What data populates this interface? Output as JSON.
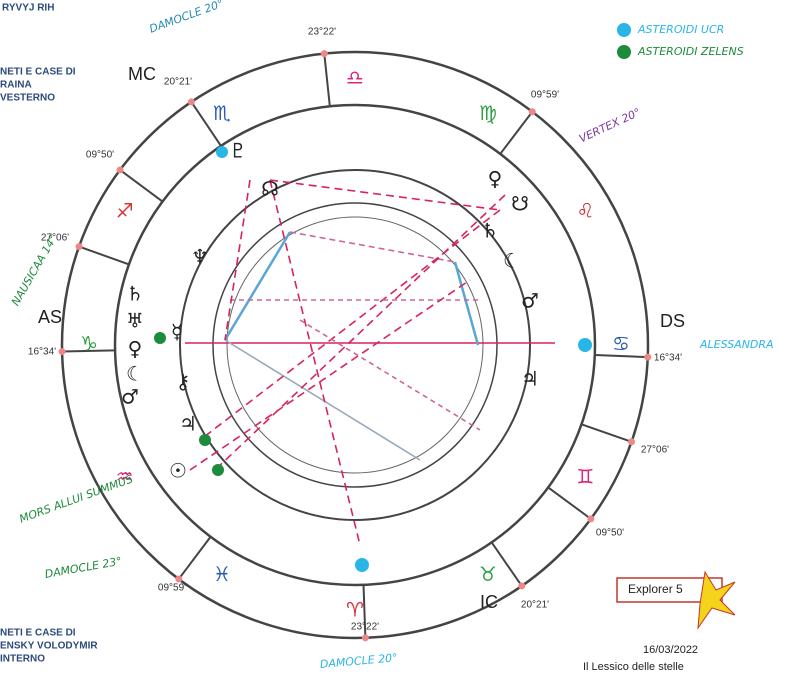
{
  "header": {
    "name": "RYVYJ RIH",
    "planets_top": [
      "NETI E CASE DI",
      "RAINA",
      "VESTERNO"
    ],
    "planets_bottom": [
      "NETI E CASE DI",
      "ENSKY VOLODYMIR",
      "INTERNO"
    ]
  },
  "legend": [
    {
      "label": "ASTEROIDI UCR",
      "color": "#29b6e6"
    },
    {
      "label": "ASTEROIDI ZELENS",
      "color": "#1e8a3c"
    }
  ],
  "angles": {
    "mc": "MC",
    "as": "AS",
    "ds": "DS",
    "ic": "IC"
  },
  "cusp_degrees": [
    "23°22'",
    "20°21'",
    "09°59'",
    "09°50'",
    "27°06'",
    "16°34'",
    "16°34'",
    "27°06'",
    "09°50'",
    "09°59'",
    "20°21'",
    "23°22'"
  ],
  "signs": [
    "♎",
    "♏",
    "♐",
    "♑",
    "♒",
    "♓",
    "♈",
    "♉",
    "♊",
    "♋",
    "♌",
    "♍"
  ],
  "planets": [
    "♇",
    "☊",
    "♆",
    "♄",
    "♅",
    "☿",
    "♀",
    "☾",
    "♂",
    "⚷",
    "♃",
    "☉",
    "♀",
    "☋",
    "♄",
    "☾",
    "♂",
    "♃"
  ],
  "notes": [
    "DAMOCLE 20°",
    "VERTEX 20°",
    "ALESSANDRA",
    "DAMOCLE 23°",
    "MORS ALLUI SUMMUS",
    "DAMOCLE 20°",
    "NAUSICAA 14°"
  ],
  "footer": {
    "badge": "Explorer 5",
    "date": "16/03/2022",
    "source": "Il Lessico delle stelle"
  }
}
